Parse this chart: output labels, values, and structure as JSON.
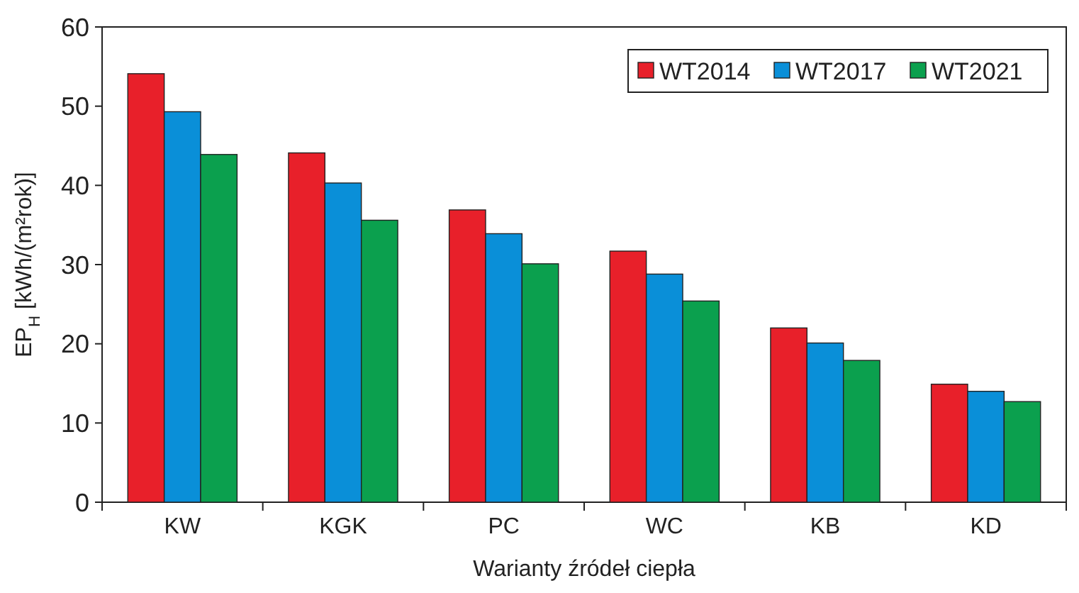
{
  "chart_data": {
    "type": "bar",
    "xlabel": "Warianty źródeł ciepła",
    "ylabel": "EP$_{H}$ [kWh/(m²rok)]",
    "categories": [
      "KW",
      "KGK",
      "PC",
      "WC",
      "KB",
      "KD"
    ],
    "series": [
      {
        "name": "WT2014",
        "color": "#e8202a",
        "values": [
          54.1,
          44.1,
          36.9,
          31.7,
          22.0,
          14.9
        ]
      },
      {
        "name": "WT2017",
        "color": "#0a8fd8",
        "values": [
          49.3,
          40.3,
          33.9,
          28.8,
          20.1,
          14.0
        ]
      },
      {
        "name": "WT2021",
        "color": "#0ba04e",
        "values": [
          43.9,
          35.6,
          30.1,
          25.4,
          17.9,
          12.7
        ]
      }
    ],
    "ylim": [
      0,
      60
    ],
    "yticks": [
      0,
      10,
      20,
      30,
      40,
      50,
      60
    ],
    "grid": false,
    "legend": "top right"
  }
}
